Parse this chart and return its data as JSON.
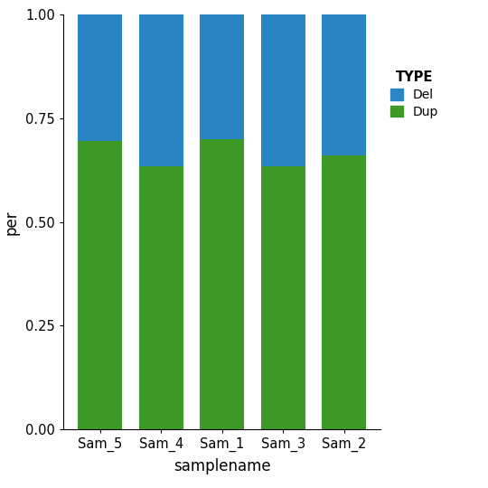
{
  "categories": [
    "Sam_5",
    "Sam_4",
    "Sam_1",
    "Sam_3",
    "Sam_2"
  ],
  "dup_values": [
    0.695,
    0.635,
    0.7,
    0.635,
    0.66
  ],
  "del_values": [
    0.305,
    0.365,
    0.3,
    0.365,
    0.34
  ],
  "dup_color": "#3d9a27",
  "del_color": "#2b85c2",
  "xlabel": "samplename",
  "ylabel": "per",
  "legend_title": "TYPE",
  "ylim": [
    0,
    1.0
  ],
  "yticks": [
    0.0,
    0.25,
    0.5,
    0.75,
    1.0
  ],
  "bar_width": 0.72,
  "bg_color": "#ffffff",
  "panel_bg": "#ffffff",
  "figsize": [
    5.4,
    5.4
  ],
  "dpi": 100
}
